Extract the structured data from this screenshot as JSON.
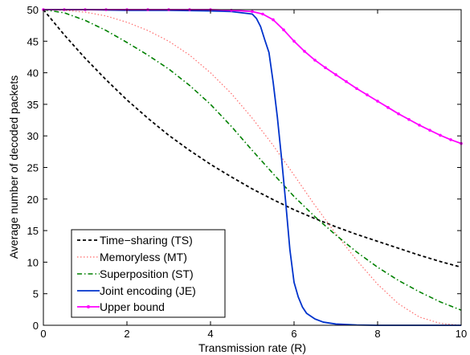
{
  "chart_data": {
    "type": "line",
    "title": "",
    "xlabel": "Transmission rate (R)",
    "ylabel": "Average number of decoded packets",
    "xlim": [
      0,
      10
    ],
    "ylim": [
      0,
      50
    ],
    "xticks": [
      0,
      2,
      4,
      6,
      8,
      10
    ],
    "yticks": [
      0,
      5,
      10,
      15,
      20,
      25,
      30,
      35,
      40,
      45,
      50
    ],
    "xtick_labels": [
      "0",
      "2",
      "4",
      "6",
      "8",
      "10"
    ],
    "ytick_labels": [
      "0",
      "5",
      "10",
      "15",
      "20",
      "25",
      "30",
      "35",
      "40",
      "45",
      "50"
    ],
    "grid": false,
    "legend_position": "bottom-left",
    "series": [
      {
        "name": "Time−sharing (TS)",
        "color": "#000000",
        "style": "dashed",
        "x": [
          0,
          0.5,
          1,
          1.5,
          2,
          2.5,
          3,
          3.5,
          4,
          4.5,
          5,
          5.5,
          6,
          6.5,
          7,
          7.5,
          8,
          8.5,
          9,
          9.5,
          10
        ],
        "y": [
          50,
          46.0,
          42.3,
          38.9,
          35.7,
          32.8,
          30.1,
          27.7,
          25.5,
          23.5,
          21.6,
          19.9,
          18.3,
          16.9,
          15.6,
          14.4,
          13.3,
          12.2,
          11.1,
          10.1,
          9.2
        ]
      },
      {
        "name": "Memoryless (MT)",
        "color": "#ff6b6b",
        "style": "dotted",
        "x": [
          0,
          0.5,
          1,
          1.5,
          2,
          2.5,
          3,
          3.5,
          4,
          4.5,
          5,
          5.5,
          6,
          6.5,
          7,
          7.5,
          8,
          8.5,
          9,
          9.5,
          10
        ],
        "y": [
          50,
          49.9,
          49.6,
          49.0,
          48.0,
          46.7,
          45.0,
          42.8,
          40.0,
          36.7,
          32.8,
          28.5,
          23.8,
          19.0,
          14.5,
          10.3,
          6.5,
          3.4,
          1.3,
          0.3,
          0.0
        ]
      },
      {
        "name": "Superposition (ST)",
        "color": "#008000",
        "style": "dashdot",
        "x": [
          0,
          0.5,
          1,
          1.5,
          2,
          2.5,
          3,
          3.5,
          4,
          4.5,
          5,
          5.5,
          6,
          6.5,
          7,
          7.5,
          8,
          8.5,
          9,
          9.5,
          10
        ],
        "y": [
          50,
          49.5,
          48.3,
          46.7,
          44.8,
          42.8,
          40.6,
          38.0,
          35.0,
          31.5,
          27.7,
          24.0,
          20.4,
          17.2,
          14.3,
          11.6,
          9.2,
          7.1,
          5.3,
          3.7,
          2.4
        ]
      },
      {
        "name": "Joint encoding (JE)",
        "color": "#0033cc",
        "style": "solid",
        "x": [
          0,
          1,
          2,
          3,
          4,
          4.5,
          5,
          5.1,
          5.2,
          5.3,
          5.4,
          5.5,
          5.6,
          5.7,
          5.8,
          5.9,
          6.0,
          6.1,
          6.2,
          6.3,
          6.5,
          6.7,
          7,
          7.5,
          8,
          9,
          10
        ],
        "y": [
          50,
          50,
          49.9,
          49.9,
          49.8,
          49.7,
          49.3,
          48.6,
          47.3,
          45.2,
          43.2,
          38.5,
          33.0,
          26.5,
          19.5,
          12.0,
          6.8,
          4.5,
          2.9,
          1.9,
          1.0,
          0.5,
          0.2,
          0.05,
          0,
          0,
          0
        ]
      },
      {
        "name": "Upper bound",
        "color": "#ff00ff",
        "style": "solid-markers",
        "x": [
          0,
          0.5,
          1,
          1.5,
          2,
          2.5,
          3,
          3.5,
          4,
          4.5,
          5,
          5.25,
          5.5,
          5.75,
          6,
          6.25,
          6.5,
          6.75,
          7,
          7.25,
          7.5,
          7.75,
          8,
          8.25,
          8.5,
          8.75,
          9,
          9.25,
          9.5,
          9.75,
          10
        ],
        "y": [
          50,
          50,
          50,
          50,
          50,
          50,
          50,
          50,
          50,
          49.9,
          49.7,
          49.3,
          48.4,
          46.8,
          45.0,
          43.4,
          42.0,
          40.8,
          39.7,
          38.6,
          37.5,
          36.5,
          35.5,
          34.5,
          33.5,
          32.6,
          31.7,
          30.9,
          30.1,
          29.4,
          28.8
        ]
      }
    ]
  }
}
